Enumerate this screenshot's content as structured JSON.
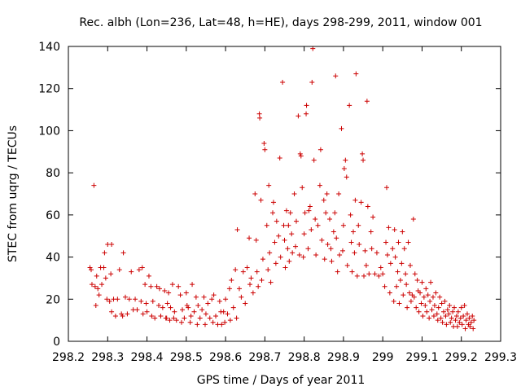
{
  "chart_data": {
    "type": "scatter",
    "title": "Rec. albh (Lon=236, Lat=48, h=HE), days 298-299, 2011, window 001",
    "xlabel": "GPS time / Days of year 2011",
    "ylabel": "STEC from uqrg / TECUs",
    "xlim": [
      298.2,
      299.3
    ],
    "ylim": [
      0,
      140
    ],
    "xticks": [
      "298.2",
      "298.3",
      "298.4",
      "298.5",
      "298.6",
      "298.7",
      "298.8",
      "298.9",
      "299",
      "299.1",
      "299.2",
      "299.3"
    ],
    "yticks": [
      "0",
      "20",
      "40",
      "60",
      "80",
      "100",
      "120",
      "140"
    ],
    "grid": false,
    "legend": "none",
    "marker": "plus",
    "color": "#cc0000",
    "points": [
      [
        298.255,
        35
      ],
      [
        298.258,
        34
      ],
      [
        298.26,
        27
      ],
      [
        298.265,
        74
      ],
      [
        298.268,
        26
      ],
      [
        298.27,
        17
      ],
      [
        298.272,
        31
      ],
      [
        298.275,
        25
      ],
      [
        298.278,
        22
      ],
      [
        298.282,
        35
      ],
      [
        298.285,
        27
      ],
      [
        298.29,
        35
      ],
      [
        298.292,
        42
      ],
      [
        298.295,
        30
      ],
      [
        298.298,
        20
      ],
      [
        298.3,
        46
      ],
      [
        298.305,
        19
      ],
      [
        298.308,
        32
      ],
      [
        298.31,
        46
      ],
      [
        298.31,
        14
      ],
      [
        298.315,
        20
      ],
      [
        298.32,
        12
      ],
      [
        298.325,
        20
      ],
      [
        298.33,
        34
      ],
      [
        298.335,
        13
      ],
      [
        298.338,
        12
      ],
      [
        298.34,
        42
      ],
      [
        298.345,
        21
      ],
      [
        298.35,
        13
      ],
      [
        298.355,
        20
      ],
      [
        298.36,
        33
      ],
      [
        298.365,
        15
      ],
      [
        298.37,
        20
      ],
      [
        298.375,
        15
      ],
      [
        298.38,
        34
      ],
      [
        298.385,
        19
      ],
      [
        298.388,
        35
      ],
      [
        298.39,
        13
      ],
      [
        298.395,
        27
      ],
      [
        298.398,
        18
      ],
      [
        298.4,
        14
      ],
      [
        298.405,
        31
      ],
      [
        298.41,
        26
      ],
      [
        298.412,
        12
      ],
      [
        298.415,
        19
      ],
      [
        298.42,
        11
      ],
      [
        298.425,
        26
      ],
      [
        298.43,
        17
      ],
      [
        298.432,
        25
      ],
      [
        298.435,
        12
      ],
      [
        298.44,
        16
      ],
      [
        298.445,
        24
      ],
      [
        298.448,
        11
      ],
      [
        298.45,
        11
      ],
      [
        298.452,
        18
      ],
      [
        298.455,
        23
      ],
      [
        298.458,
        10
      ],
      [
        298.46,
        16
      ],
      [
        298.465,
        27
      ],
      [
        298.468,
        11
      ],
      [
        298.47,
        14
      ],
      [
        298.475,
        10
      ],
      [
        298.48,
        26
      ],
      [
        298.485,
        22
      ],
      [
        298.488,
        9
      ],
      [
        298.49,
        15
      ],
      [
        298.495,
        11
      ],
      [
        298.5,
        23
      ],
      [
        298.502,
        17
      ],
      [
        298.505,
        16
      ],
      [
        298.51,
        9
      ],
      [
        298.512,
        12
      ],
      [
        298.515,
        27
      ],
      [
        298.52,
        14
      ],
      [
        298.525,
        21
      ],
      [
        298.528,
        8
      ],
      [
        298.53,
        17
      ],
      [
        298.535,
        11
      ],
      [
        298.54,
        15
      ],
      [
        298.545,
        21
      ],
      [
        298.548,
        8
      ],
      [
        298.55,
        13
      ],
      [
        298.555,
        18
      ],
      [
        298.56,
        11
      ],
      [
        298.565,
        20
      ],
      [
        298.568,
        9
      ],
      [
        298.57,
        22
      ],
      [
        298.575,
        12
      ],
      [
        298.58,
        8
      ],
      [
        298.585,
        19
      ],
      [
        298.588,
        14
      ],
      [
        298.59,
        8
      ],
      [
        298.595,
        14
      ],
      [
        298.598,
        9
      ],
      [
        298.6,
        20
      ],
      [
        298.605,
        13
      ],
      [
        298.61,
        25
      ],
      [
        298.612,
        10
      ],
      [
        298.615,
        29
      ],
      [
        298.62,
        16
      ],
      [
        298.625,
        34
      ],
      [
        298.628,
        11
      ],
      [
        298.63,
        53
      ],
      [
        298.635,
        25
      ],
      [
        298.64,
        21
      ],
      [
        298.645,
        33
      ],
      [
        298.65,
        18
      ],
      [
        298.655,
        35
      ],
      [
        298.66,
        49
      ],
      [
        298.662,
        27
      ],
      [
        298.665,
        30
      ],
      [
        298.67,
        23
      ],
      [
        298.675,
        70
      ],
      [
        298.678,
        48
      ],
      [
        298.68,
        33
      ],
      [
        298.683,
        26
      ],
      [
        298.686,
        108
      ],
      [
        298.687,
        106
      ],
      [
        298.69,
        67
      ],
      [
        298.692,
        29
      ],
      [
        298.695,
        39
      ],
      [
        298.698,
        94
      ],
      [
        298.7,
        91
      ],
      [
        298.705,
        55
      ],
      [
        298.708,
        34
      ],
      [
        298.71,
        74
      ],
      [
        298.712,
        42
      ],
      [
        298.715,
        28
      ],
      [
        298.72,
        61
      ],
      [
        298.722,
        66
      ],
      [
        298.725,
        47
      ],
      [
        298.728,
        37
      ],
      [
        298.73,
        57
      ],
      [
        298.735,
        50
      ],
      [
        298.738,
        87
      ],
      [
        298.74,
        40
      ],
      [
        298.745,
        123
      ],
      [
        298.748,
        55
      ],
      [
        298.75,
        48
      ],
      [
        298.752,
        35
      ],
      [
        298.755,
        62
      ],
      [
        298.758,
        44
      ],
      [
        298.76,
        55
      ],
      [
        298.762,
        38
      ],
      [
        298.765,
        61
      ],
      [
        298.768,
        51
      ],
      [
        298.77,
        42
      ],
      [
        298.775,
        70
      ],
      [
        298.778,
        45
      ],
      [
        298.78,
        57
      ],
      [
        298.785,
        107
      ],
      [
        298.788,
        41
      ],
      [
        298.79,
        89
      ],
      [
        298.792,
        88
      ],
      [
        298.795,
        73
      ],
      [
        298.798,
        40
      ],
      [
        298.8,
        51
      ],
      [
        298.802,
        61
      ],
      [
        298.805,
        108
      ],
      [
        298.806,
        112
      ],
      [
        298.81,
        44
      ],
      [
        298.812,
        62
      ],
      [
        298.815,
        64
      ],
      [
        298.818,
        53
      ],
      [
        298.82,
        123
      ],
      [
        298.822,
        139
      ],
      [
        298.825,
        86
      ],
      [
        298.828,
        58
      ],
      [
        298.83,
        41
      ],
      [
        298.835,
        55
      ],
      [
        298.84,
        74
      ],
      [
        298.842,
        91
      ],
      [
        298.845,
        48
      ],
      [
        298.85,
        67
      ],
      [
        298.852,
        39
      ],
      [
        298.855,
        61
      ],
      [
        298.858,
        70
      ],
      [
        298.86,
        46
      ],
      [
        298.865,
        58
      ],
      [
        298.868,
        44
      ],
      [
        298.87,
        38
      ],
      [
        298.875,
        52
      ],
      [
        298.878,
        61
      ],
      [
        298.88,
        126
      ],
      [
        298.882,
        49
      ],
      [
        298.885,
        33
      ],
      [
        298.888,
        70
      ],
      [
        298.89,
        41
      ],
      [
        298.895,
        101
      ],
      [
        298.898,
        43
      ],
      [
        298.9,
        55
      ],
      [
        298.902,
        82
      ],
      [
        298.905,
        86
      ],
      [
        298.908,
        78
      ],
      [
        298.91,
        36
      ],
      [
        298.915,
        112
      ],
      [
        298.918,
        60
      ],
      [
        298.92,
        47
      ],
      [
        298.922,
        33
      ],
      [
        298.925,
        52
      ],
      [
        298.928,
        42
      ],
      [
        298.93,
        67
      ],
      [
        298.932,
        127
      ],
      [
        298.935,
        31
      ],
      [
        298.938,
        55
      ],
      [
        298.94,
        46
      ],
      [
        298.945,
        66
      ],
      [
        298.948,
        89
      ],
      [
        298.95,
        86
      ],
      [
        298.952,
        31
      ],
      [
        298.955,
        43
      ],
      [
        298.958,
        36
      ],
      [
        298.96,
        114
      ],
      [
        298.962,
        64
      ],
      [
        298.965,
        32
      ],
      [
        298.97,
        52
      ],
      [
        298.972,
        44
      ],
      [
        298.975,
        59
      ],
      [
        298.98,
        32
      ],
      [
        298.985,
        42
      ],
      [
        298.99,
        31
      ],
      [
        298.995,
        35
      ],
      [
        299.0,
        32
      ],
      [
        299.005,
        26
      ],
      [
        299.008,
        47
      ],
      [
        299.01,
        73
      ],
      [
        299.012,
        41
      ],
      [
        299.015,
        54
      ],
      [
        299.018,
        23
      ],
      [
        299.02,
        37
      ],
      [
        299.025,
        44
      ],
      [
        299.028,
        19
      ],
      [
        299.03,
        53
      ],
      [
        299.032,
        40
      ],
      [
        299.035,
        26
      ],
      [
        299.038,
        33
      ],
      [
        299.04,
        47
      ],
      [
        299.042,
        18
      ],
      [
        299.045,
        29
      ],
      [
        299.048,
        37
      ],
      [
        299.05,
        52
      ],
      [
        299.052,
        22
      ],
      [
        299.055,
        44
      ],
      [
        299.058,
        32
      ],
      [
        299.06,
        27
      ],
      [
        299.062,
        16
      ],
      [
        299.065,
        47
      ],
      [
        299.068,
        23
      ],
      [
        299.07,
        36
      ],
      [
        299.072,
        19
      ],
      [
        299.075,
        22
      ],
      [
        299.078,
        58
      ],
      [
        299.08,
        21
      ],
      [
        299.082,
        32
      ],
      [
        299.085,
        16
      ],
      [
        299.088,
        29
      ],
      [
        299.09,
        24
      ],
      [
        299.092,
        14
      ],
      [
        299.095,
        23
      ],
      [
        299.098,
        18
      ],
      [
        299.1,
        28
      ],
      [
        299.102,
        12
      ],
      [
        299.105,
        21
      ],
      [
        299.108,
        17
      ],
      [
        299.11,
        25
      ],
      [
        299.112,
        14
      ],
      [
        299.115,
        22
      ],
      [
        299.118,
        11
      ],
      [
        299.12,
        19
      ],
      [
        299.122,
        28
      ],
      [
        299.125,
        15
      ],
      [
        299.128,
        21
      ],
      [
        299.13,
        12
      ],
      [
        299.132,
        17
      ],
      [
        299.135,
        23
      ],
      [
        299.138,
        13
      ],
      [
        299.14,
        10
      ],
      [
        299.142,
        16
      ],
      [
        299.145,
        21
      ],
      [
        299.148,
        11
      ],
      [
        299.15,
        18
      ],
      [
        299.152,
        9
      ],
      [
        299.155,
        14
      ],
      [
        299.158,
        19
      ],
      [
        299.16,
        12
      ],
      [
        299.162,
        8
      ],
      [
        299.165,
        15
      ],
      [
        299.168,
        13
      ],
      [
        299.17,
        17
      ],
      [
        299.172,
        9
      ],
      [
        299.175,
        11
      ],
      [
        299.178,
        14
      ],
      [
        299.18,
        7
      ],
      [
        299.182,
        16
      ],
      [
        299.185,
        10
      ],
      [
        299.188,
        12
      ],
      [
        299.19,
        7
      ],
      [
        299.192,
        14
      ],
      [
        299.195,
        9
      ],
      [
        299.198,
        11
      ],
      [
        299.2,
        16
      ],
      [
        299.202,
        8
      ],
      [
        299.205,
        12
      ],
      [
        299.208,
        17
      ],
      [
        299.21,
        6
      ],
      [
        299.212,
        10
      ],
      [
        299.215,
        13
      ],
      [
        299.218,
        8
      ],
      [
        299.22,
        11
      ],
      [
        299.222,
        7
      ],
      [
        299.225,
        9
      ],
      [
        299.228,
        12
      ],
      [
        299.23,
        6
      ],
      [
        299.232,
        10
      ]
    ]
  }
}
